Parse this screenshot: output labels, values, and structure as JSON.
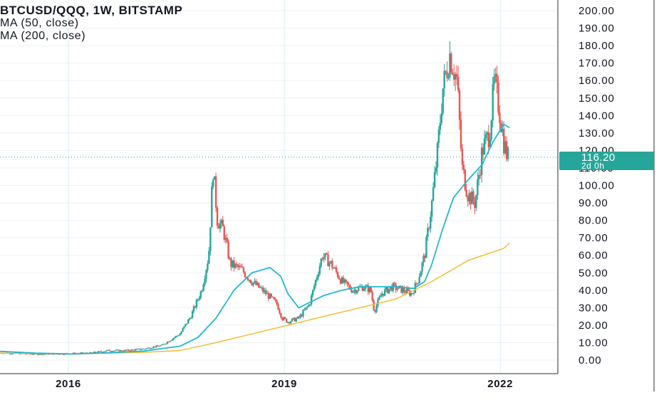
{
  "legend": {
    "title": "BTCUSD/QQQ, 1W, BITSTAMP",
    "ma_fast": "MA (50, close)",
    "ma_slow": "MA (200, close)"
  },
  "last_price": {
    "value": "116.20",
    "countdown": "2d 0h"
  },
  "colors": {
    "up": "#26a69a",
    "down": "#ef5350",
    "ma50": "#22b8cf",
    "ma200": "#f5b82e",
    "grid": "#eef0f3",
    "axis_text": "#131722",
    "price_line": "#26a69a"
  },
  "chart_data": {
    "type": "candlestick",
    "ylim": [
      0,
      200
    ],
    "y_ticks": [
      "200.00",
      "190.00",
      "180.00",
      "170.00",
      "160.00",
      "150.00",
      "140.00",
      "130.00",
      "120.00",
      "110.00",
      "100.00",
      "90.00",
      "80.00",
      "70.00",
      "60.00",
      "50.00",
      "40.00",
      "30.00",
      "20.00",
      "10.00",
      "0.00"
    ],
    "x_ticks": [
      "2016",
      "2019",
      "2022"
    ],
    "series": [
      {
        "name": "BTCUSD/QQQ",
        "points": [
          [
            2015.0,
            4.2
          ],
          [
            2015.25,
            3.8
          ],
          [
            2015.5,
            3.5
          ],
          [
            2015.75,
            3.6
          ],
          [
            2016.0,
            3.8
          ],
          [
            2016.25,
            4.0
          ],
          [
            2016.5,
            5.5
          ],
          [
            2016.75,
            5.5
          ],
          [
            2017.0,
            6.5
          ],
          [
            2017.25,
            8.5
          ],
          [
            2017.5,
            15
          ],
          [
            2017.65,
            25
          ],
          [
            2017.8,
            40
          ],
          [
            2017.9,
            60
          ],
          [
            2017.96,
            110
          ],
          [
            2018.02,
            80
          ],
          [
            2018.1,
            75
          ],
          [
            2018.2,
            55
          ],
          [
            2018.35,
            52
          ],
          [
            2018.5,
            45
          ],
          [
            2018.7,
            38
          ],
          [
            2018.85,
            32
          ],
          [
            2018.92,
            24
          ],
          [
            2019.0,
            22
          ],
          [
            2019.15,
            24
          ],
          [
            2019.3,
            32
          ],
          [
            2019.4,
            48
          ],
          [
            2019.48,
            60
          ],
          [
            2019.6,
            55
          ],
          [
            2019.75,
            45
          ],
          [
            2019.9,
            40
          ],
          [
            2020.05,
            42
          ],
          [
            2020.15,
            40
          ],
          [
            2020.2,
            28
          ],
          [
            2020.3,
            38
          ],
          [
            2020.45,
            42
          ],
          [
            2020.6,
            40
          ],
          [
            2020.72,
            38
          ],
          [
            2020.8,
            45
          ],
          [
            2020.9,
            60
          ],
          [
            2021.0,
            90
          ],
          [
            2021.08,
            120
          ],
          [
            2021.15,
            155
          ],
          [
            2021.25,
            175
          ],
          [
            2021.35,
            160
          ],
          [
            2021.42,
            110
          ],
          [
            2021.5,
            95
          ],
          [
            2021.6,
            90
          ],
          [
            2021.7,
            120
          ],
          [
            2021.8,
            130
          ],
          [
            2021.87,
            160
          ],
          [
            2021.95,
            140
          ],
          [
            2022.0,
            125
          ],
          [
            2022.05,
            116.2
          ]
        ]
      },
      {
        "name": "MA (50, close)",
        "points": [
          [
            2015.0,
            5
          ],
          [
            2015.5,
            4
          ],
          [
            2016.0,
            3.5
          ],
          [
            2016.5,
            4.2
          ],
          [
            2017.0,
            5.2
          ],
          [
            2017.5,
            8
          ],
          [
            2017.75,
            13
          ],
          [
            2018.0,
            24
          ],
          [
            2018.25,
            40
          ],
          [
            2018.5,
            50
          ],
          [
            2018.75,
            53
          ],
          [
            2018.9,
            48
          ],
          [
            2019.0,
            38
          ],
          [
            2019.15,
            30
          ],
          [
            2019.3,
            33
          ],
          [
            2019.5,
            37
          ],
          [
            2019.75,
            40
          ],
          [
            2020.0,
            42
          ],
          [
            2020.25,
            42
          ],
          [
            2020.5,
            42
          ],
          [
            2020.75,
            41
          ],
          [
            2020.9,
            45
          ],
          [
            2021.0,
            55
          ],
          [
            2021.15,
            75
          ],
          [
            2021.3,
            93
          ],
          [
            2021.5,
            103
          ],
          [
            2021.7,
            112
          ],
          [
            2021.85,
            125
          ],
          [
            2022.0,
            135
          ],
          [
            2022.08,
            133
          ]
        ]
      },
      {
        "name": "MA (200, close)",
        "points": [
          [
            2015.0,
            4
          ],
          [
            2016.0,
            3.5
          ],
          [
            2017.0,
            4.5
          ],
          [
            2017.5,
            5.5
          ],
          [
            2018.0,
            10
          ],
          [
            2018.5,
            15
          ],
          [
            2019.0,
            20
          ],
          [
            2019.5,
            25
          ],
          [
            2020.0,
            30
          ],
          [
            2020.5,
            35
          ],
          [
            2021.0,
            45
          ],
          [
            2021.5,
            57
          ],
          [
            2022.0,
            64
          ],
          [
            2022.08,
            67
          ]
        ]
      }
    ]
  }
}
